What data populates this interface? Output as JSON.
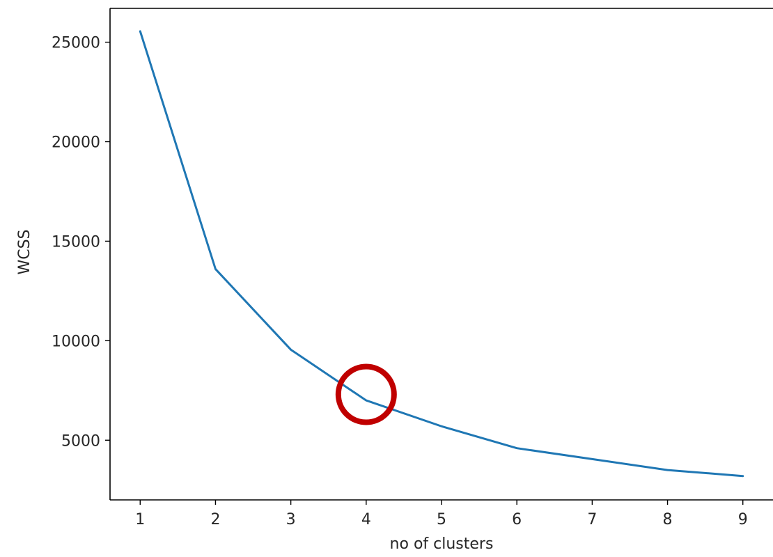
{
  "chart_data": {
    "type": "line",
    "title": "",
    "xlabel": "no of clusters",
    "ylabel": "WCSS",
    "x": [
      1,
      2,
      3,
      4,
      5,
      6,
      7,
      8,
      9
    ],
    "series": [
      {
        "values": [
          25550,
          13600,
          9550,
          7000,
          5700,
          4600,
          4050,
          3500,
          3200
        ],
        "color": "#1f77b4"
      }
    ],
    "xticks": [
      1,
      2,
      3,
      4,
      5,
      6,
      7,
      8,
      9
    ],
    "yticks": [
      5000,
      10000,
      15000,
      20000,
      25000
    ],
    "xlim": [
      0.6,
      9.4
    ],
    "ylim": [
      2000,
      26700
    ],
    "grid": false,
    "legend": "none",
    "annotations": [
      {
        "type": "circle",
        "x": 4,
        "y": 7300,
        "color": "#c00000",
        "meaning": "highlighted elbow point"
      }
    ]
  }
}
